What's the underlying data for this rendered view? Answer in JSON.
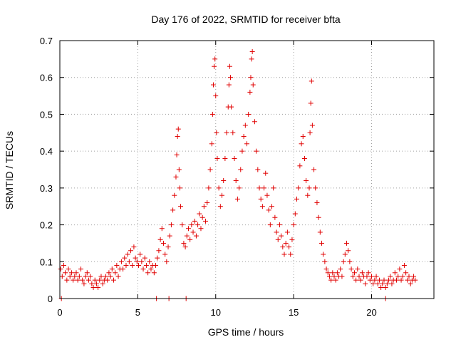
{
  "chart_data": {
    "type": "scatter",
    "title": "Day 176 of 2022, SRMTID for receiver bfta",
    "xlabel": "GPS time / hours",
    "ylabel": "SRMTID / TECUs",
    "xlim": [
      0,
      24
    ],
    "ylim": [
      0,
      0.7
    ],
    "xticks": [
      0,
      5,
      10,
      15,
      20
    ],
    "yticks": [
      0,
      0.1,
      0.2,
      0.3,
      0.4,
      0.5,
      0.6,
      0.7
    ],
    "xtick_labels": [
      "0",
      "5",
      "10",
      "15",
      "20"
    ],
    "ytick_labels": [
      "0",
      "0.1",
      "0.2",
      "0.3",
      "0.4",
      "0.5",
      "0.6",
      "0.7"
    ],
    "grid": true,
    "marker": "+",
    "series": [
      {
        "name": "SRMTID",
        "color": "#e00000",
        "points": [
          [
            0.05,
            0.08
          ],
          [
            0.15,
            0.06
          ],
          [
            0.25,
            0.09
          ],
          [
            0.35,
            0.07
          ],
          [
            0.45,
            0.05
          ],
          [
            0.55,
            0.08
          ],
          [
            0.65,
            0.06
          ],
          [
            0.75,
            0.07
          ],
          [
            0.85,
            0.05
          ],
          [
            0.95,
            0.06
          ],
          [
            1.05,
            0.07
          ],
          [
            1.15,
            0.05
          ],
          [
            1.25,
            0.06
          ],
          [
            1.35,
            0.08
          ],
          [
            1.45,
            0.05
          ],
          [
            1.55,
            0.04
          ],
          [
            1.65,
            0.06
          ],
          [
            1.75,
            0.07
          ],
          [
            1.85,
            0.05
          ],
          [
            1.95,
            0.06
          ],
          [
            2.05,
            0.04
          ],
          [
            2.15,
            0.03
          ],
          [
            2.25,
            0.05
          ],
          [
            2.35,
            0.04
          ],
          [
            2.45,
            0.03
          ],
          [
            2.55,
            0.05
          ],
          [
            2.65,
            0.06
          ],
          [
            2.75,
            0.04
          ],
          [
            2.85,
            0.05
          ],
          [
            2.95,
            0.06
          ],
          [
            3.05,
            0.05
          ],
          [
            3.15,
            0.07
          ],
          [
            3.25,
            0.06
          ],
          [
            3.35,
            0.08
          ],
          [
            3.45,
            0.05
          ],
          [
            3.55,
            0.07
          ],
          [
            3.65,
            0.09
          ],
          [
            3.75,
            0.06
          ],
          [
            3.85,
            0.08
          ],
          [
            3.95,
            0.1
          ],
          [
            4.05,
            0.08
          ],
          [
            4.15,
            0.11
          ],
          [
            4.25,
            0.09
          ],
          [
            4.35,
            0.12
          ],
          [
            4.45,
            0.1
          ],
          [
            4.55,
            0.13
          ],
          [
            4.65,
            0.09
          ],
          [
            4.75,
            0.14
          ],
          [
            4.85,
            0.11
          ],
          [
            4.95,
            0.1
          ],
          [
            5.05,
            0.09
          ],
          [
            5.15,
            0.12
          ],
          [
            5.25,
            0.1
          ],
          [
            5.35,
            0.08
          ],
          [
            5.45,
            0.11
          ],
          [
            5.55,
            0.09
          ],
          [
            5.65,
            0.07
          ],
          [
            5.75,
            0.1
          ],
          [
            5.85,
            0.08
          ],
          [
            5.95,
            0.09
          ],
          [
            6.05,
            0.07
          ],
          [
            6.15,
            0.09
          ],
          [
            6.25,
            0.11
          ],
          [
            6.35,
            0.13
          ],
          [
            6.45,
            0.16
          ],
          [
            6.55,
            0.19
          ],
          [
            6.65,
            0.15
          ],
          [
            6.75,
            0.12
          ],
          [
            6.85,
            0.1
          ],
          [
            6.95,
            0.14
          ],
          [
            7.05,
            0.17
          ],
          [
            7.15,
            0.2
          ],
          [
            7.25,
            0.24
          ],
          [
            7.35,
            0.28
          ],
          [
            7.45,
            0.33
          ],
          [
            7.5,
            0.39
          ],
          [
            7.55,
            0.44
          ],
          [
            7.6,
            0.46
          ],
          [
            7.65,
            0.35
          ],
          [
            7.7,
            0.3
          ],
          [
            7.75,
            0.25
          ],
          [
            7.85,
            0.2
          ],
          [
            7.95,
            0.15
          ],
          [
            8.05,
            0.14
          ],
          [
            8.15,
            0.17
          ],
          [
            8.25,
            0.19
          ],
          [
            8.35,
            0.16
          ],
          [
            8.45,
            0.2
          ],
          [
            8.55,
            0.18
          ],
          [
            8.65,
            0.21
          ],
          [
            8.75,
            0.17
          ],
          [
            8.85,
            0.2
          ],
          [
            8.95,
            0.23
          ],
          [
            9.05,
            0.19
          ],
          [
            9.15,
            0.22
          ],
          [
            9.25,
            0.25
          ],
          [
            9.35,
            0.21
          ],
          [
            9.45,
            0.26
          ],
          [
            9.55,
            0.3
          ],
          [
            9.65,
            0.35
          ],
          [
            9.75,
            0.42
          ],
          [
            9.8,
            0.5
          ],
          [
            9.85,
            0.58
          ],
          [
            9.9,
            0.63
          ],
          [
            9.95,
            0.65
          ],
          [
            10.0,
            0.55
          ],
          [
            10.05,
            0.45
          ],
          [
            10.1,
            0.38
          ],
          [
            10.2,
            0.3
          ],
          [
            10.3,
            0.25
          ],
          [
            10.4,
            0.28
          ],
          [
            10.5,
            0.32
          ],
          [
            10.6,
            0.38
          ],
          [
            10.7,
            0.45
          ],
          [
            10.8,
            0.52
          ],
          [
            10.85,
            0.58
          ],
          [
            10.9,
            0.63
          ],
          [
            10.95,
            0.6
          ],
          [
            11.0,
            0.52
          ],
          [
            11.1,
            0.45
          ],
          [
            11.2,
            0.38
          ],
          [
            11.3,
            0.32
          ],
          [
            11.4,
            0.27
          ],
          [
            11.5,
            0.3
          ],
          [
            11.6,
            0.35
          ],
          [
            11.7,
            0.4
          ],
          [
            11.8,
            0.44
          ],
          [
            11.9,
            0.47
          ],
          [
            12.0,
            0.42
          ],
          [
            12.1,
            0.5
          ],
          [
            12.2,
            0.56
          ],
          [
            12.25,
            0.6
          ],
          [
            12.3,
            0.65
          ],
          [
            12.35,
            0.67
          ],
          [
            12.4,
            0.58
          ],
          [
            12.5,
            0.48
          ],
          [
            12.6,
            0.4
          ],
          [
            12.7,
            0.35
          ],
          [
            12.8,
            0.3
          ],
          [
            12.9,
            0.27
          ],
          [
            13.0,
            0.25
          ],
          [
            13.1,
            0.3
          ],
          [
            13.2,
            0.34
          ],
          [
            13.3,
            0.28
          ],
          [
            13.4,
            0.24
          ],
          [
            13.5,
            0.2
          ],
          [
            13.6,
            0.25
          ],
          [
            13.7,
            0.3
          ],
          [
            13.8,
            0.22
          ],
          [
            13.9,
            0.18
          ],
          [
            14.0,
            0.16
          ],
          [
            14.1,
            0.2
          ],
          [
            14.2,
            0.17
          ],
          [
            14.3,
            0.14
          ],
          [
            14.4,
            0.12
          ],
          [
            14.5,
            0.15
          ],
          [
            14.6,
            0.18
          ],
          [
            14.7,
            0.14
          ],
          [
            14.8,
            0.12
          ],
          [
            14.9,
            0.16
          ],
          [
            15.0,
            0.2
          ],
          [
            15.1,
            0.23
          ],
          [
            15.2,
            0.27
          ],
          [
            15.3,
            0.3
          ],
          [
            15.4,
            0.36
          ],
          [
            15.5,
            0.42
          ],
          [
            15.6,
            0.44
          ],
          [
            15.7,
            0.38
          ],
          [
            15.8,
            0.32
          ],
          [
            15.9,
            0.28
          ],
          [
            16.0,
            0.3
          ],
          [
            16.05,
            0.45
          ],
          [
            16.1,
            0.53
          ],
          [
            16.15,
            0.59
          ],
          [
            16.2,
            0.47
          ],
          [
            16.3,
            0.35
          ],
          [
            16.4,
            0.3
          ],
          [
            16.5,
            0.26
          ],
          [
            16.6,
            0.22
          ],
          [
            16.7,
            0.18
          ],
          [
            16.8,
            0.15
          ],
          [
            16.9,
            0.12
          ],
          [
            17.0,
            0.1
          ],
          [
            17.1,
            0.08
          ],
          [
            17.2,
            0.07
          ],
          [
            17.3,
            0.06
          ],
          [
            17.4,
            0.05
          ],
          [
            17.5,
            0.07
          ],
          [
            17.6,
            0.06
          ],
          [
            17.7,
            0.05
          ],
          [
            17.8,
            0.07
          ],
          [
            17.9,
            0.06
          ],
          [
            18.0,
            0.08
          ],
          [
            18.1,
            0.06
          ],
          [
            18.2,
            0.1
          ],
          [
            18.3,
            0.12
          ],
          [
            18.4,
            0.15
          ],
          [
            18.5,
            0.13
          ],
          [
            18.6,
            0.1
          ],
          [
            18.7,
            0.08
          ],
          [
            18.8,
            0.06
          ],
          [
            18.9,
            0.07
          ],
          [
            19.0,
            0.05
          ],
          [
            19.1,
            0.08
          ],
          [
            19.2,
            0.06
          ],
          [
            19.3,
            0.05
          ],
          [
            19.4,
            0.07
          ],
          [
            19.5,
            0.06
          ],
          [
            19.6,
            0.04
          ],
          [
            19.7,
            0.06
          ],
          [
            19.8,
            0.07
          ],
          [
            19.9,
            0.05
          ],
          [
            20.0,
            0.06
          ],
          [
            20.1,
            0.04
          ],
          [
            20.2,
            0.05
          ],
          [
            20.3,
            0.06
          ],
          [
            20.4,
            0.04
          ],
          [
            20.5,
            0.05
          ],
          [
            20.6,
            0.03
          ],
          [
            20.7,
            0.04
          ],
          [
            20.8,
            0.05
          ],
          [
            20.9,
            0.03
          ],
          [
            21.0,
            0.04
          ],
          [
            21.1,
            0.05
          ],
          [
            21.2,
            0.06
          ],
          [
            21.3,
            0.04
          ],
          [
            21.4,
            0.05
          ],
          [
            21.5,
            0.07
          ],
          [
            21.6,
            0.05
          ],
          [
            21.7,
            0.06
          ],
          [
            21.8,
            0.08
          ],
          [
            21.9,
            0.05
          ],
          [
            22.0,
            0.06
          ],
          [
            22.1,
            0.09
          ],
          [
            22.2,
            0.07
          ],
          [
            22.3,
            0.05
          ],
          [
            22.4,
            0.06
          ],
          [
            22.5,
            0.04
          ],
          [
            22.6,
            0.05
          ],
          [
            22.7,
            0.06
          ],
          [
            22.8,
            0.05
          ],
          [
            0.1,
            0.0
          ],
          [
            6.2,
            0.0
          ],
          [
            7.0,
            0.0
          ],
          [
            8.1,
            0.0
          ],
          [
            20.9,
            0.0
          ]
        ]
      }
    ]
  }
}
